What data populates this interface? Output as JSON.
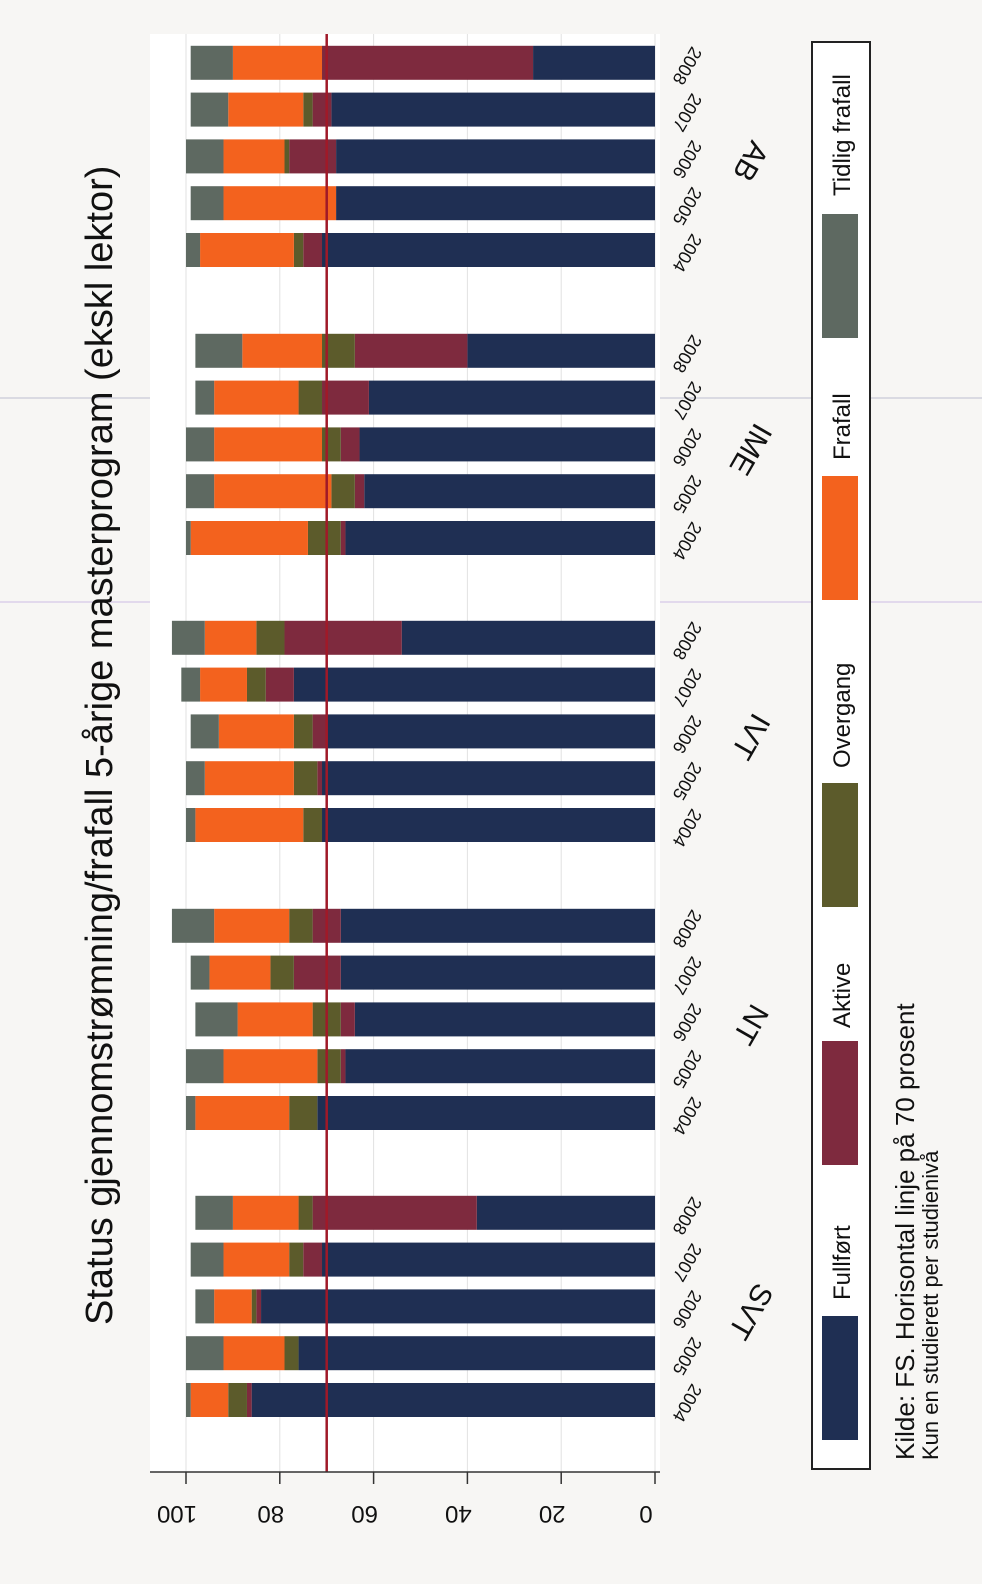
{
  "chart_data": {
    "type": "bar",
    "orientation": "rotated-90-clockwise",
    "stacked": true,
    "title": "Status gjennomstrømning/frafall 5-årige masterprogram  (ekskl lektor)",
    "value_axis": {
      "ylim": [
        0,
        100
      ],
      "ticks": [
        "0",
        "20",
        "40",
        "60",
        "80",
        "100"
      ]
    },
    "reference_line": {
      "value": 70
    },
    "grid": true,
    "legend_position": "right",
    "groups": [
      {
        "name": "SVT",
        "years": [
          "2004",
          "2005",
          "2006",
          "2007",
          "2008"
        ]
      },
      {
        "name": "NT",
        "years": [
          "2004",
          "2005",
          "2006",
          "2007",
          "2008"
        ]
      },
      {
        "name": "IVT",
        "years": [
          "2004",
          "2005",
          "2006",
          "2007",
          "2008"
        ]
      },
      {
        "name": "IME",
        "years": [
          "2004",
          "2005",
          "2006",
          "2007",
          "2008"
        ]
      },
      {
        "name": "AB",
        "years": [
          "2004",
          "2005",
          "2006",
          "2007",
          "2008"
        ]
      }
    ],
    "series": [
      {
        "name": "Fullført",
        "color": "#1f2f53",
        "values": [
          86,
          76,
          84,
          71,
          38,
          72,
          66,
          64,
          67,
          67,
          71,
          71,
          70,
          77,
          54,
          66,
          62,
          63,
          61,
          40,
          71,
          68,
          68,
          69,
          26
        ]
      },
      {
        "name": "Aktive",
        "color": "#7e2a3e",
        "values": [
          1,
          0,
          1,
          4,
          35,
          0,
          1,
          3,
          10,
          6,
          0,
          1,
          3,
          6,
          25,
          1,
          2,
          4,
          10,
          24,
          4,
          0,
          10,
          4,
          45
        ]
      },
      {
        "name": "Overgang",
        "color": "#5c5b2b",
        "values": [
          4,
          3,
          1,
          3,
          3,
          6,
          5,
          6,
          5,
          5,
          4,
          5,
          4,
          4,
          6,
          7,
          5,
          4,
          5,
          7,
          2,
          0,
          1,
          2,
          0
        ]
      },
      {
        "name": "Frafall",
        "color": "#f3621e",
        "values": [
          8,
          13,
          8,
          14,
          14,
          20,
          20,
          16,
          13,
          16,
          23,
          19,
          16,
          10,
          11,
          25,
          25,
          23,
          18,
          17,
          20,
          24,
          13,
          16,
          19
        ]
      },
      {
        "name": "Tidlig frafall",
        "color": "#5e6961",
        "values": [
          1,
          8,
          4,
          7,
          8,
          2,
          8,
          9,
          4,
          9,
          2,
          4,
          6,
          4,
          7,
          1,
          6,
          6,
          4,
          10,
          3,
          7,
          8,
          8,
          9
        ]
      }
    ]
  },
  "caption": {
    "line1": "Kilde: FS. Horisontal linje på 70 prosent",
    "line2": "Kun en studierett per studienivå"
  }
}
